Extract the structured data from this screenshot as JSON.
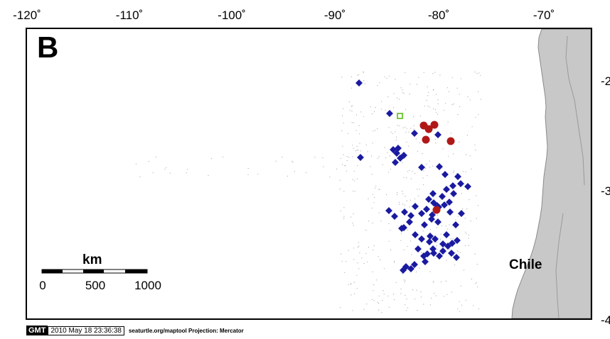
{
  "panel_label": "B",
  "lon_ticks": [
    "-120˚",
    "-110˚",
    "-100˚",
    "-90˚",
    "-80˚",
    "-70˚"
  ],
  "lat_ticks": [
    "-2",
    "-3",
    "-4"
  ],
  "country_label": "Chile",
  "scale_bar": {
    "unit": "km",
    "labels": [
      "0",
      "500",
      "1000"
    ]
  },
  "footer": {
    "badge": "GMT",
    "date": "2010 May 18 23:36:38",
    "credit": "seaturtle.org/maptool Projection: Mercator"
  },
  "colors": {
    "land": "#c8c8c8",
    "diamond": "#1a1aa0",
    "circle": "#b01818",
    "square": "#7ac943",
    "track": "#555555"
  },
  "symbols": {
    "diamonds": "blue diamond markers",
    "circles": "red circle markers",
    "square": "green square marker"
  }
}
